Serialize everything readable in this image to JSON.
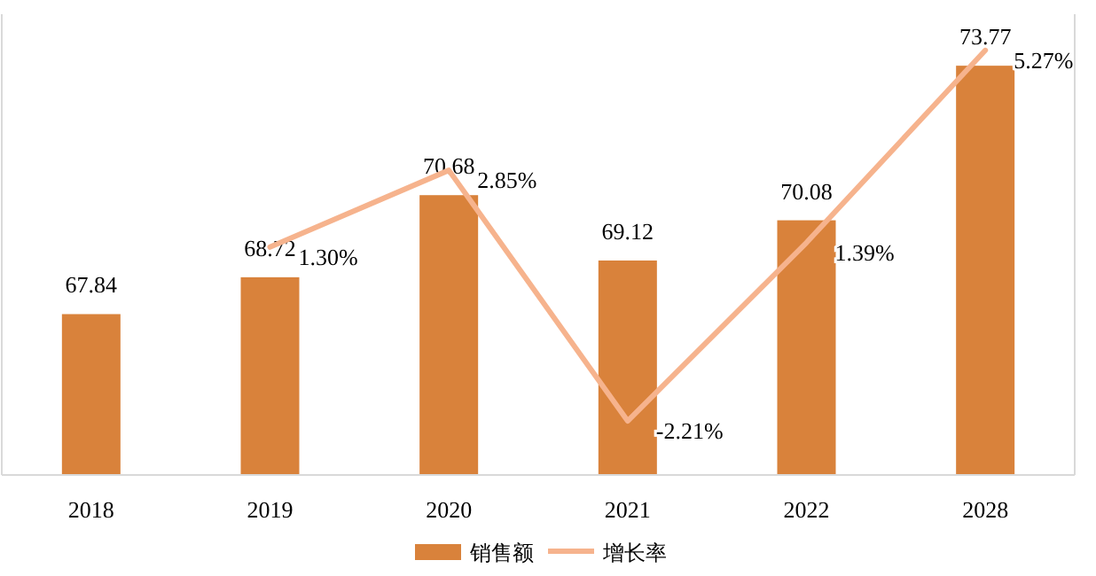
{
  "chart_data": {
    "type": "bar",
    "categories": [
      "2018",
      "2019",
      "2020",
      "2021",
      "2022",
      "2028"
    ],
    "ylim": [
      64,
      75
    ],
    "y2lim": [
      -3.3,
      6
    ],
    "tick_labels": "x",
    "legend": "bottom",
    "series": [
      {
        "name": "销售额",
        "color": "#d9823b",
        "values": [
          67.84,
          68.72,
          70.68,
          69.12,
          70.08,
          73.77
        ],
        "value_labels": [
          "67.84",
          "68.72",
          "70.68",
          "69.12",
          "70.08",
          "73.77"
        ]
      },
      {
        "name": "增长率",
        "type": "line",
        "axis": "y2",
        "color": "#f6b38d",
        "values": [
          null,
          1.3,
          2.85,
          -2.21,
          1.39,
          5.27
        ],
        "value_labels": [
          null,
          "1.30%",
          "2.85%",
          "-2.21%",
          "1.39%",
          "5.27%"
        ]
      }
    ]
  }
}
